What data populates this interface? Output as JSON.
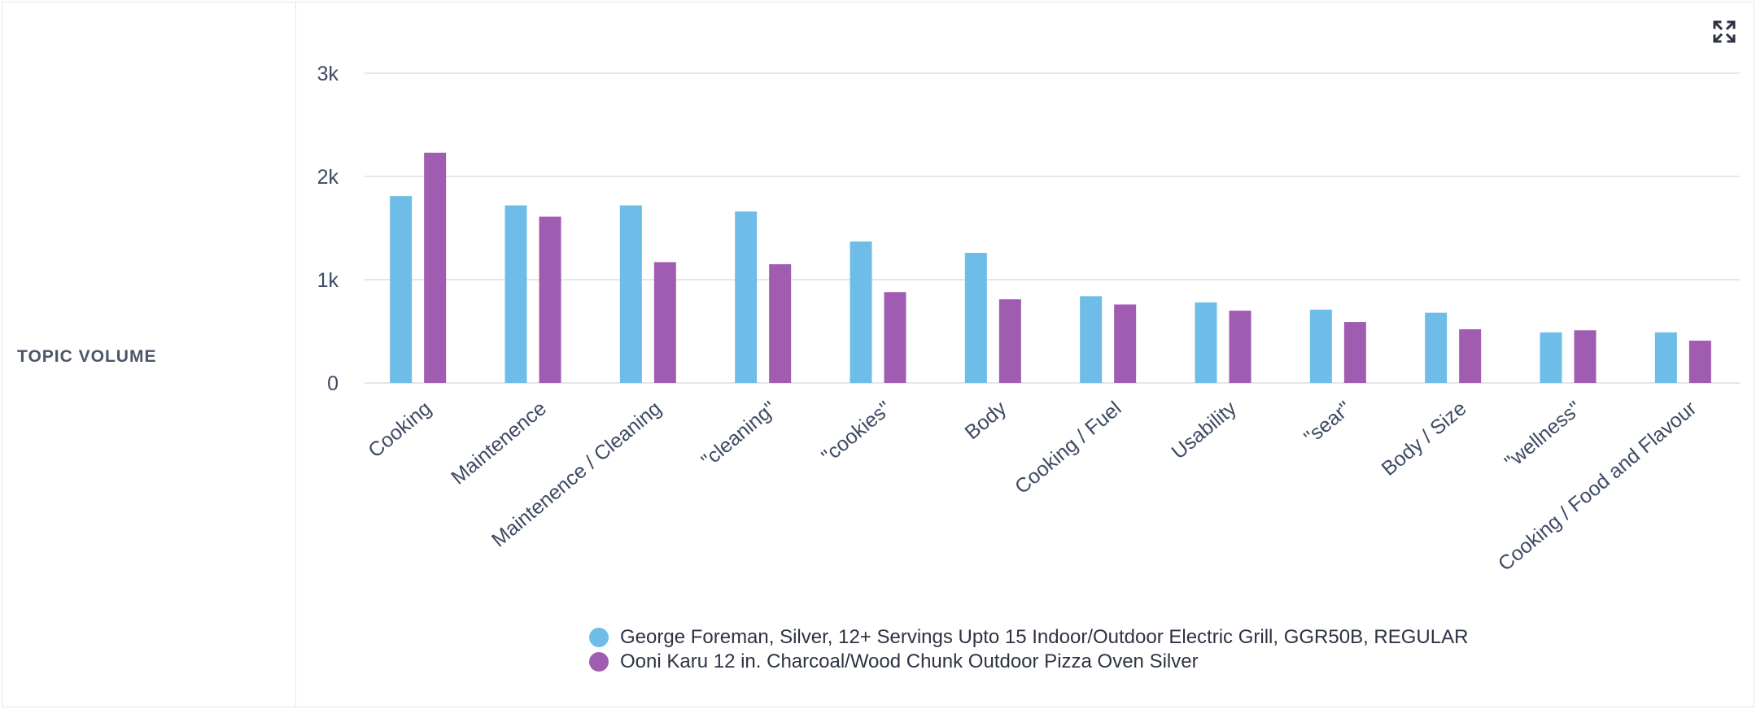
{
  "panel": {
    "label": "TOPIC VOLUME"
  },
  "icons": {
    "expand": "expand-icon"
  },
  "colors": {
    "series1": "#6dbde8",
    "series2": "#a05cb0",
    "grid": "#e4e6ea",
    "axis_text": "#3d4a63"
  },
  "chart_data": {
    "type": "bar",
    "categories": [
      "Cooking",
      "Maintenence",
      "Maintenence / Cleaning",
      "\"cleaning\"",
      "\"cookies\"",
      "Body",
      "Cooking / Fuel",
      "Usability",
      "\"sear\"",
      "Body / Size",
      "\"wellness\"",
      "Cooking / Food and Flavour"
    ],
    "series": [
      {
        "name": "George Foreman, Silver, 12+ Servings Upto 15 Indoor/Outdoor Electric Grill, GGR50B, REGULAR",
        "values": [
          1810,
          1720,
          1720,
          1660,
          1370,
          1260,
          840,
          780,
          710,
          680,
          490,
          490
        ]
      },
      {
        "name": "Ooni Karu 12 in. Charcoal/Wood Chunk Outdoor Pizza Oven Silver",
        "values": [
          2230,
          1610,
          1170,
          1150,
          880,
          810,
          760,
          700,
          590,
          520,
          510,
          410
        ]
      }
    ],
    "yticks": [
      "0",
      "1k",
      "2k",
      "3k"
    ],
    "ytick_values": [
      0,
      1000,
      2000,
      3000
    ],
    "ylim": [
      0,
      3000
    ],
    "xlabel": "",
    "ylabel": "",
    "grid": true,
    "legend_position": "bottom"
  }
}
